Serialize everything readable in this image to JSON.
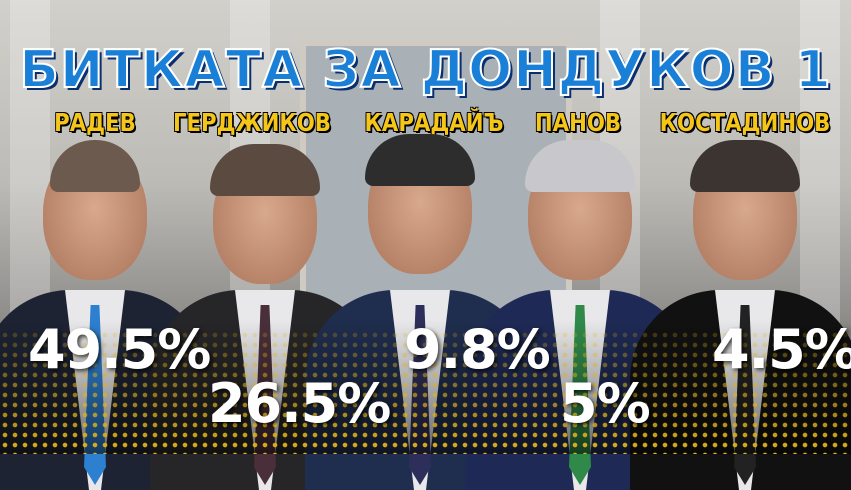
{
  "title": "БИТКАТА ЗА ДОНДУКОВ 1",
  "colors": {
    "title": "#1a7fd6",
    "names": "#f5c518",
    "percent": "#ffffff",
    "dots": "#e0b21a"
  },
  "candidates": [
    {
      "name": "РАДЕВ",
      "percent": "49.5%",
      "value": 49.5
    },
    {
      "name": "ГЕРДЖИКОВ",
      "percent": "26.5%",
      "value": 26.5
    },
    {
      "name": "КАРАДАЙЪ",
      "percent": "9.8%",
      "value": 9.8
    },
    {
      "name": "ПАНОВ",
      "percent": "5%",
      "value": 5
    },
    {
      "name": "КОСТАДИНОВ",
      "percent": "4.5%",
      "value": 4.5
    }
  ]
}
